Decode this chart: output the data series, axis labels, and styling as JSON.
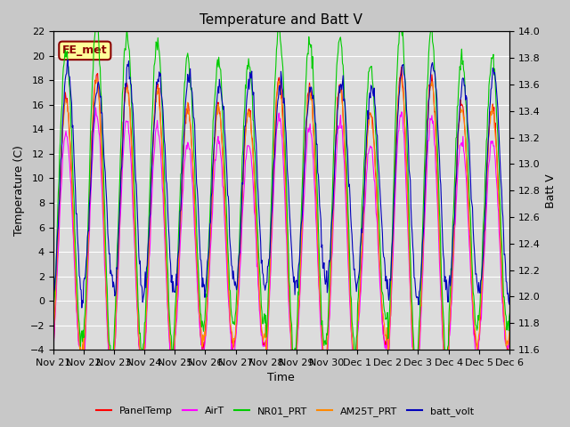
{
  "title": "Temperature and Batt V",
  "xlabel": "Time",
  "ylabel_left": "Temperature (C)",
  "ylabel_right": "Batt V",
  "ylim_left": [
    -4,
    22
  ],
  "ylim_right": [
    11.6,
    14.0
  ],
  "annotation_text": "EE_met",
  "annotation_box_color": "#FFFF99",
  "annotation_border_color": "#8B0000",
  "fig_bg_color": "#C8C8C8",
  "plot_bg_color": "#DCDCDC",
  "xtick_positions": [
    0,
    1,
    2,
    3,
    4,
    5,
    6,
    7,
    8,
    9,
    10,
    11,
    12,
    13,
    14,
    15
  ],
  "xtick_labels": [
    "Nov 21",
    "Nov 22",
    "Nov 23",
    "Nov 24",
    "Nov 25",
    "Nov 26",
    "Nov 27",
    "Nov 28",
    "Nov 29",
    "Nov 30",
    "Dec 1",
    "Dec 2",
    "Dec 3",
    "Dec 4",
    "Dec 5",
    "Dec 6"
  ],
  "legend_entries": [
    {
      "label": "PanelTemp",
      "color": "#FF0000"
    },
    {
      "label": "AirT",
      "color": "#FF00FF"
    },
    {
      "label": "NR01_PRT",
      "color": "#00CC00"
    },
    {
      "label": "AM25T_PRT",
      "color": "#FF8800"
    },
    {
      "label": "batt_volt",
      "color": "#0000BB"
    }
  ],
  "title_fontsize": 11,
  "axis_fontsize": 9,
  "tick_fontsize": 8,
  "legend_fontsize": 8,
  "linewidth": 0.8
}
